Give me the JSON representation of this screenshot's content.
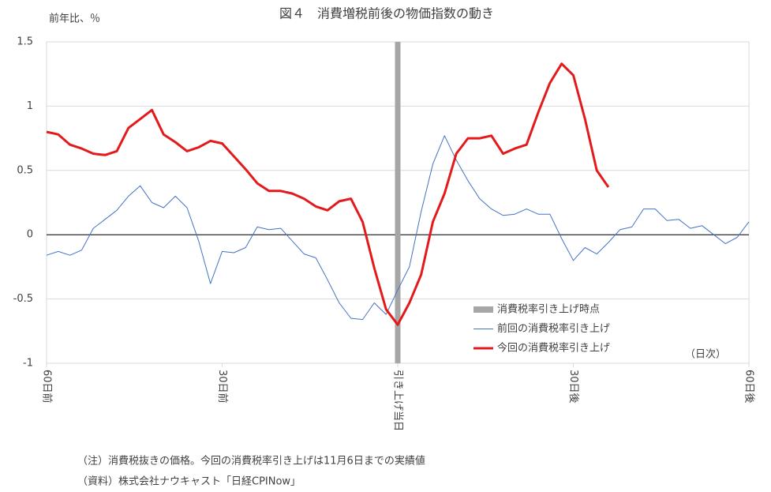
{
  "chart_data": {
    "type": "line",
    "title": "図４　消費増税前後の物価指数の動き",
    "y_label": "前年比、％",
    "x_unit_label": "（日次）",
    "notes": [
      "（注）消費税抜きの価格。今回の消費税率引き上げは11月6日までの実績値",
      "（資料）株式会社ナウキャスト「日経CPINow」"
    ],
    "x": [
      -60,
      -58,
      -56,
      -54,
      -52,
      -50,
      -48,
      -46,
      -44,
      -42,
      -40,
      -38,
      -36,
      -34,
      -32,
      -30,
      -28,
      -26,
      -24,
      -22,
      -20,
      -18,
      -16,
      -14,
      -12,
      -10,
      -8,
      -6,
      -4,
      -2,
      0,
      2,
      4,
      6,
      8,
      10,
      12,
      14,
      16,
      18,
      20,
      22,
      24,
      26,
      28,
      30,
      32,
      34,
      36,
      38,
      40,
      42,
      44,
      46,
      48,
      50,
      52,
      54,
      56,
      58,
      60
    ],
    "xlim": [
      -60,
      60
    ],
    "xticks": [
      {
        "value": -60,
        "label": "60日前"
      },
      {
        "value": -30,
        "label": "30日前"
      },
      {
        "value": 0,
        "label": "引き上げ当日"
      },
      {
        "value": 30,
        "label": "30日後"
      },
      {
        "value": 60,
        "label": "60日後"
      }
    ],
    "ylim": [
      -1,
      1.5
    ],
    "yticks": [
      -1,
      -0.5,
      0,
      0.5,
      1,
      1.5
    ],
    "grid": true,
    "event": {
      "name": "消費税率引き上げ時点",
      "x": 0,
      "color": "#a6a6a6"
    },
    "series": [
      {
        "name": "前回の消費税率引き上げ",
        "color": "#4472c4",
        "width": 1,
        "values": [
          -0.16,
          -0.13,
          -0.16,
          -0.12,
          0.05,
          0.12,
          0.19,
          0.3,
          0.38,
          0.25,
          0.21,
          0.3,
          0.21,
          -0.05,
          -0.38,
          -0.13,
          -0.14,
          -0.1,
          0.06,
          0.04,
          0.05,
          -0.05,
          -0.15,
          -0.18,
          -0.35,
          -0.53,
          -0.65,
          -0.66,
          -0.53,
          -0.62,
          -0.43,
          -0.25,
          0.18,
          0.55,
          0.77,
          0.58,
          0.42,
          0.28,
          0.2,
          0.15,
          0.16,
          0.2,
          0.16,
          0.16,
          -0.03,
          -0.2,
          -0.1,
          -0.15,
          -0.06,
          0.04,
          0.06,
          0.2,
          0.2,
          0.11,
          0.12,
          0.05,
          0.07,
          0.0,
          -0.07,
          -0.02,
          0.1
        ]
      },
      {
        "name": "今回の消費税率引き上げ",
        "color": "#e31a1c",
        "width": 3,
        "values": [
          0.8,
          0.78,
          0.7,
          0.67,
          0.63,
          0.62,
          0.65,
          0.83,
          0.9,
          0.97,
          0.78,
          0.72,
          0.65,
          0.68,
          0.73,
          0.71,
          0.61,
          0.51,
          0.4,
          0.34,
          0.34,
          0.32,
          0.28,
          0.22,
          0.19,
          0.26,
          0.28,
          0.1,
          -0.26,
          -0.58,
          -0.7,
          -0.53,
          -0.31,
          0.1,
          0.32,
          0.63,
          0.75,
          0.75,
          0.77,
          0.63,
          0.67,
          0.7,
          0.95,
          1.18,
          1.33,
          1.24,
          0.9,
          0.5,
          0.37,
          null,
          null,
          null,
          null,
          null,
          null,
          null,
          null,
          null,
          null,
          null,
          null
        ]
      }
    ]
  }
}
